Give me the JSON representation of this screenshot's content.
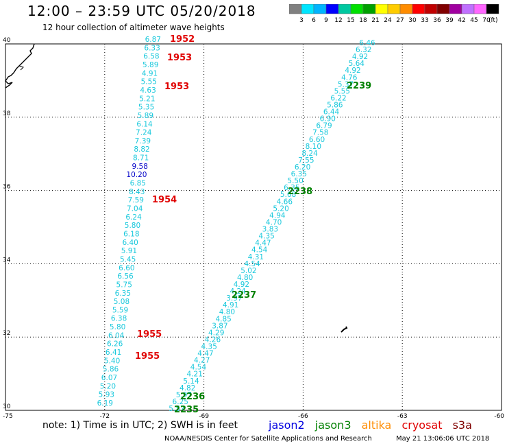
{
  "header": {
    "title": "12:00 – 23:59 UTC 05/20/2018",
    "subtitle": "12 hour collection of altimeter wave heights"
  },
  "scale": {
    "colors": [
      "#808080",
      "#00e5ff",
      "#00b4ff",
      "#0000ff",
      "#00c8a0",
      "#00e000",
      "#00a000",
      "#ffff00",
      "#ffcc00",
      "#ff8c00",
      "#ff0000",
      "#c00000",
      "#800000",
      "#a000a0",
      "#c070ff",
      "#ff66ff",
      "#000000"
    ],
    "labels": [
      "3",
      "6",
      "9",
      "12",
      "15",
      "18",
      "21",
      "24",
      "27",
      "30",
      "33",
      "36",
      "39",
      "42",
      "45",
      "70",
      "(ft)"
    ]
  },
  "map": {
    "x_ticks": [
      "-75",
      "-72",
      "-69",
      "-66",
      "-63",
      "-60"
    ],
    "y_ticks": [
      "40",
      "38",
      "36",
      "34",
      "32",
      "30"
    ],
    "lon_range": [
      -75,
      -60
    ],
    "lat_range": [
      30,
      40
    ],
    "pass_west": {
      "values": [
        "6.87",
        "6.33",
        "6.58",
        "5.89",
        "4.91",
        "5.55",
        "4.63",
        "5.21",
        "5.35",
        "5.89",
        "6.14",
        "7.24",
        "7.39",
        "8.82",
        "8.71",
        "9.58",
        "10.20",
        "6.85",
        "8.43",
        "7.59",
        "7.04",
        "6.24",
        "5.80",
        "6.18",
        "6.40",
        "5.91",
        "5.45",
        "6.60",
        "6.56",
        "5.75",
        "6.35",
        "5.08",
        "5.59",
        "6.38",
        "5.80",
        "6.04",
        "6.26",
        "6.41",
        "5.40",
        "5.86",
        "6.07",
        "5.20",
        "5.93",
        "6.19"
      ],
      "colors": [
        "#18c8dc",
        "#18c8dc",
        "#18c8dc",
        "#18c8dc",
        "#18c8dc",
        "#18c8dc",
        "#18c8dc",
        "#18c8dc",
        "#18c8dc",
        "#18c8dc",
        "#18c8dc",
        "#18c8dc",
        "#18c8dc",
        "#18c8dc",
        "#18c8dc",
        "#0000c8",
        "#0000c8",
        "#18c8dc",
        "#18c8dc",
        "#18c8dc",
        "#18c8dc",
        "#18c8dc",
        "#18c8dc",
        "#18c8dc",
        "#18c8dc",
        "#18c8dc",
        "#18c8dc",
        "#18c8dc",
        "#18c8dc",
        "#18c8dc",
        "#18c8dc",
        "#18c8dc",
        "#18c8dc",
        "#18c8dc",
        "#18c8dc",
        "#18c8dc",
        "#18c8dc",
        "#18c8dc",
        "#18c8dc",
        "#18c8dc",
        "#18c8dc",
        "#18c8dc",
        "#18c8dc",
        "#18c8dc"
      ]
    },
    "pass_east": {
      "values": [
        "6.46",
        "6.32",
        "4.92",
        "5.64",
        "4.92",
        "4.76",
        "5.37",
        "5.55",
        "6.22",
        "5.86",
        "6.44",
        "6.90",
        "6.79",
        "7.58",
        "6.60",
        "8.10",
        "8.24",
        "7.55",
        "6.20",
        "6.35",
        "5.50",
        "6.35",
        "5.68",
        "4.66",
        "5.20",
        "4.94",
        "4.70",
        "3.83",
        "4.35",
        "4.47",
        "4.54",
        "4.31",
        "4.54",
        "5.02",
        "4.80",
        "4.92",
        "4.24",
        "3.97",
        "4.91",
        "4.80",
        "4.85",
        "3.87",
        "4.29",
        "4.26",
        "4.35",
        "4.47",
        "4.27",
        "4.54",
        "4.21",
        "5.14",
        "4.82",
        "5.97",
        "6.25",
        "5.57"
      ]
    },
    "time_labels_west": [
      "1952",
      "1953",
      "1953",
      "1954",
      "1955",
      "1955"
    ],
    "time_labels_east": [
      "2239",
      "2238",
      "2237",
      "2236",
      "2235"
    ],
    "west_color": "#e00000",
    "east_color": "#008000"
  },
  "footer": {
    "note": "note:  1) Time is in UTC; 2) SWH is in feet",
    "legend": [
      {
        "label": "jason2",
        "color": "#0000e0"
      },
      {
        "label": "jason3",
        "color": "#008000"
      },
      {
        "label": "altika",
        "color": "#ff8c00"
      },
      {
        "label": "cryosat",
        "color": "#e00000"
      },
      {
        "label": "s3a",
        "color": "#800000"
      }
    ],
    "credit": "NOAA/NESDIS Center for Satellite Applications and Research",
    "stamp": "May 21 13:06:06 UTC 2018"
  }
}
